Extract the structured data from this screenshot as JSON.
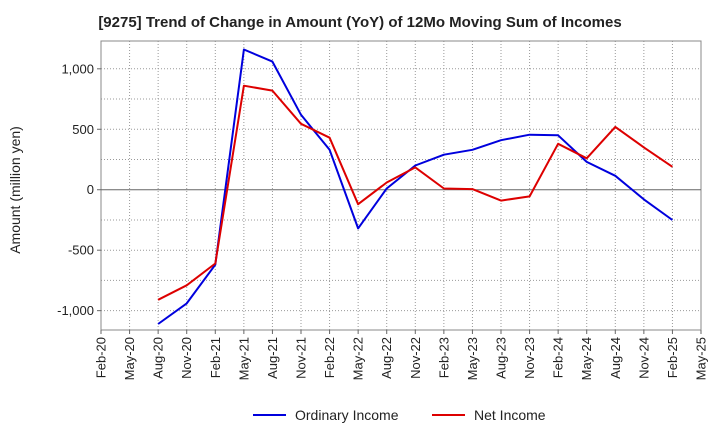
{
  "chart_data": {
    "type": "line",
    "title": "[9275]  Trend of Change in Amount (YoY) of 12Mo Moving Sum of Incomes",
    "ylabel": "Amount (million yen)",
    "xlabel": "",
    "ylim": [
      -1160,
      1230
    ],
    "grid": true,
    "legend_position": "bottom",
    "x_ticks": [
      "Feb-20",
      "May-20",
      "Aug-20",
      "Nov-20",
      "Feb-21",
      "May-21",
      "Aug-21",
      "Nov-21",
      "Feb-22",
      "May-22",
      "Aug-22",
      "Nov-22",
      "Feb-23",
      "May-23",
      "Aug-23",
      "Nov-23",
      "Feb-24",
      "May-24",
      "Aug-24",
      "Nov-24",
      "Feb-25",
      "May-25"
    ],
    "y_ticks": [
      {
        "value": 1000,
        "label": "1,000"
      },
      {
        "value": 500,
        "label": "500"
      },
      {
        "value": 0,
        "label": "0"
      },
      {
        "value": -500,
        "label": "-500"
      },
      {
        "value": -1000,
        "label": "-1,000"
      }
    ],
    "series": [
      {
        "name": "Ordinary Income",
        "color": "#0000dd",
        "points": [
          [
            "Aug-20",
            -1110
          ],
          [
            "Nov-20",
            -940
          ],
          [
            "Feb-21",
            -620
          ],
          [
            "May-21",
            1160
          ],
          [
            "Aug-21",
            1060
          ],
          [
            "Nov-21",
            620
          ],
          [
            "Feb-22",
            330
          ],
          [
            "May-22",
            -320
          ],
          [
            "Aug-22",
            10
          ],
          [
            "Nov-22",
            200
          ],
          [
            "Feb-23",
            290
          ],
          [
            "May-23",
            330
          ],
          [
            "Aug-23",
            410
          ],
          [
            "Nov-23",
            455
          ],
          [
            "Feb-24",
            450
          ],
          [
            "May-24",
            230
          ],
          [
            "Aug-24",
            115
          ],
          [
            "Nov-24",
            -80
          ],
          [
            "Feb-25",
            -250
          ]
        ]
      },
      {
        "name": "Net Income",
        "color": "#dd0000",
        "points": [
          [
            "Aug-20",
            -910
          ],
          [
            "Nov-20",
            -790
          ],
          [
            "Feb-21",
            -610
          ],
          [
            "May-21",
            860
          ],
          [
            "Aug-21",
            820
          ],
          [
            "Nov-21",
            545
          ],
          [
            "Feb-22",
            430
          ],
          [
            "May-22",
            -120
          ],
          [
            "Aug-22",
            60
          ],
          [
            "Nov-22",
            185
          ],
          [
            "Feb-23",
            10
          ],
          [
            "May-23",
            5
          ],
          [
            "Aug-23",
            -90
          ],
          [
            "Nov-23",
            -55
          ],
          [
            "Feb-24",
            380
          ],
          [
            "May-24",
            260
          ],
          [
            "Aug-24",
            520
          ],
          [
            "Nov-24",
            350
          ],
          [
            "Feb-25",
            190
          ]
        ]
      }
    ]
  }
}
